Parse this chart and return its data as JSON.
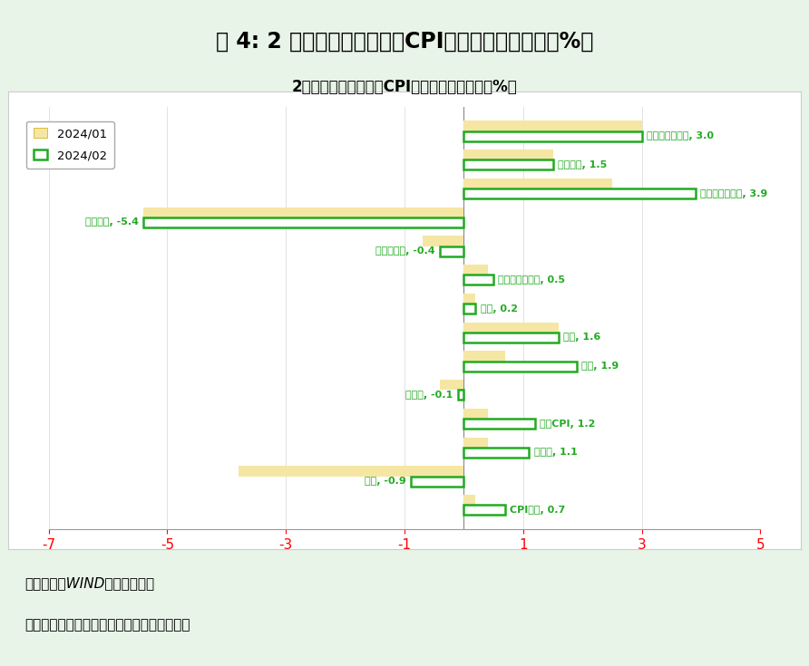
{
  "title_outer": "图 4: 2 月份居民消费价格（CPI）分类别同比涨幅（%）",
  "title_inner": "2月份居民消费价格（CPI）分类别同比涨幅（%）",
  "categories": [
    "CPI同比",
    "食品",
    "非食品",
    "核心CPI",
    "消费品",
    "服务",
    "衣着",
    "居住",
    "生活用品及服务",
    "交通和通信",
    "交通工具",
    "教育文化和娱乐",
    "医疗保健",
    "其他用品和服务"
  ],
  "values_jan": [
    0.2,
    -3.8,
    0.4,
    0.4,
    -0.4,
    0.7,
    1.6,
    0.2,
    0.4,
    -0.7,
    -5.4,
    2.5,
    1.5,
    3.0
  ],
  "values_feb": [
    0.7,
    -0.9,
    1.1,
    1.2,
    -0.1,
    1.9,
    1.6,
    0.2,
    0.5,
    -0.4,
    -5.4,
    3.9,
    1.5,
    3.0
  ],
  "labels_feb": [
    "CPI同比, 0.7",
    "食品, -0.9",
    "非食品, 1.1",
    "核心CPI, 1.2",
    "消费品, -0.1",
    "服务, 1.9",
    "衣着, 1.6",
    "居住, 0.2",
    "生活用品及服务, 0.5",
    "交通和通信, -0.4",
    "交通工具, -5.4",
    "教育文化和娱乐, 3.9",
    "医疗保健, 1.5",
    "其他用品和服务, 3.0"
  ],
  "color_jan": "#F5E6A3",
  "color_feb_edge": "#22AA22",
  "color_label": "#22AA22",
  "xlim": [
    -7,
    5
  ],
  "xticks": [
    -7,
    -5,
    -3,
    -1,
    1,
    3,
    5
  ],
  "bar_height": 0.35,
  "background_color": "#FFFFFF",
  "outer_bg": "#E8F4E8",
  "title_outer_bg": "#8EC6C5",
  "source_text": "资料来源：WIND，财信研究院",
  "note_text": "注：数据标签中同比数据为本月各分项涨跌幅"
}
